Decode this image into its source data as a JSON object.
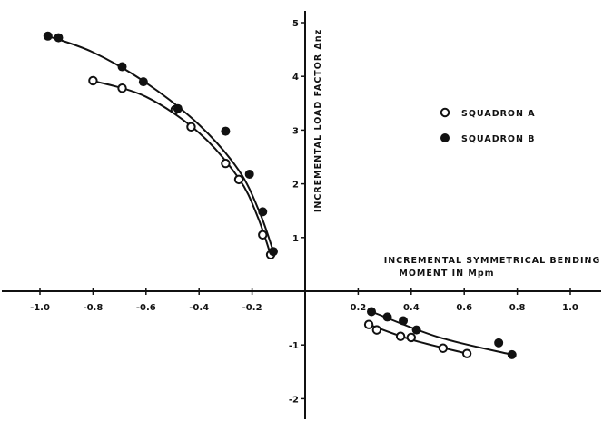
{
  "chart_data": {
    "type": "scatter",
    "title": "",
    "xlabel_line1": "INCREMENTAL SYMMETRICAL BENDING",
    "xlabel_line2": "MOMENT IN Mpm",
    "ylabel": "INCREMENTAL LOAD FACTOR Δnz",
    "xlim": [
      -1.0,
      1.0
    ],
    "ylim": [
      -2,
      5
    ],
    "x_ticks": [
      {
        "value": -1.0,
        "label": "-1.0"
      },
      {
        "value": -0.8,
        "label": "-0.8"
      },
      {
        "value": -0.6,
        "label": "-0.6"
      },
      {
        "value": -0.4,
        "label": "-0.4"
      },
      {
        "value": -0.2,
        "label": "-0.2"
      },
      {
        "value": 0.2,
        "label": "0.2"
      },
      {
        "value": 0.4,
        "label": "0.4"
      },
      {
        "value": 0.6,
        "label": "0.6"
      },
      {
        "value": 0.8,
        "label": "0.8"
      },
      {
        "value": 1.0,
        "label": "1.0"
      }
    ],
    "y_ticks": [
      {
        "value": 5,
        "label": "5"
      },
      {
        "value": 4,
        "label": "4"
      },
      {
        "value": 3,
        "label": "3"
      },
      {
        "value": 2,
        "label": "2"
      },
      {
        "value": 1,
        "label": "1"
      },
      {
        "value": -1,
        "label": "-1"
      },
      {
        "value": -2,
        "label": "-2"
      }
    ],
    "grid": false,
    "legend_position": "right",
    "series": [
      {
        "name": "SQUADRON A",
        "marker": "open-circle",
        "color": "#111111",
        "points": [
          {
            "x": -0.8,
            "y": 3.92
          },
          {
            "x": -0.69,
            "y": 3.78
          },
          {
            "x": -0.49,
            "y": 3.38
          },
          {
            "x": -0.43,
            "y": 3.06
          },
          {
            "x": -0.3,
            "y": 2.38
          },
          {
            "x": -0.25,
            "y": 2.08
          },
          {
            "x": -0.16,
            "y": 1.05
          },
          {
            "x": -0.13,
            "y": 0.68
          },
          {
            "x": 0.24,
            "y": -0.62
          },
          {
            "x": 0.27,
            "y": -0.72
          },
          {
            "x": 0.36,
            "y": -0.84
          },
          {
            "x": 0.4,
            "y": -0.86
          },
          {
            "x": 0.52,
            "y": -1.06
          },
          {
            "x": 0.61,
            "y": -1.16
          }
        ],
        "fit": [
          {
            "x": -0.8,
            "y": 3.92
          },
          {
            "x": -0.6,
            "y": 3.62
          },
          {
            "x": -0.4,
            "y": 2.95
          },
          {
            "x": -0.25,
            "y": 2.1
          },
          {
            "x": -0.18,
            "y": 1.4
          },
          {
            "x": -0.13,
            "y": 0.68
          }
        ],
        "fit_neg": [
          {
            "x": 0.24,
            "y": -0.62
          },
          {
            "x": 0.4,
            "y": -0.9
          },
          {
            "x": 0.61,
            "y": -1.16
          }
        ]
      },
      {
        "name": "SQUADRON B",
        "marker": "filled-circle",
        "color": "#111111",
        "points": [
          {
            "x": -0.97,
            "y": 4.75
          },
          {
            "x": -0.93,
            "y": 4.72
          },
          {
            "x": -0.69,
            "y": 4.18
          },
          {
            "x": -0.61,
            "y": 3.9
          },
          {
            "x": -0.48,
            "y": 3.4
          },
          {
            "x": -0.3,
            "y": 2.98
          },
          {
            "x": -0.21,
            "y": 2.18
          },
          {
            "x": -0.16,
            "y": 1.48
          },
          {
            "x": -0.12,
            "y": 0.74
          },
          {
            "x": 0.25,
            "y": -0.38
          },
          {
            "x": 0.31,
            "y": -0.48
          },
          {
            "x": 0.37,
            "y": -0.55
          },
          {
            "x": 0.42,
            "y": -0.72
          },
          {
            "x": 0.73,
            "y": -0.96
          },
          {
            "x": 0.78,
            "y": -1.18
          }
        ],
        "fit": [
          {
            "x": -0.97,
            "y": 4.75
          },
          {
            "x": -0.8,
            "y": 4.45
          },
          {
            "x": -0.6,
            "y": 3.88
          },
          {
            "x": -0.4,
            "y": 3.1
          },
          {
            "x": -0.25,
            "y": 2.25
          },
          {
            "x": -0.17,
            "y": 1.45
          },
          {
            "x": -0.12,
            "y": 0.74
          }
        ],
        "fit_neg": [
          {
            "x": 0.25,
            "y": -0.38
          },
          {
            "x": 0.5,
            "y": -0.85
          },
          {
            "x": 0.78,
            "y": -1.18
          }
        ]
      }
    ]
  }
}
